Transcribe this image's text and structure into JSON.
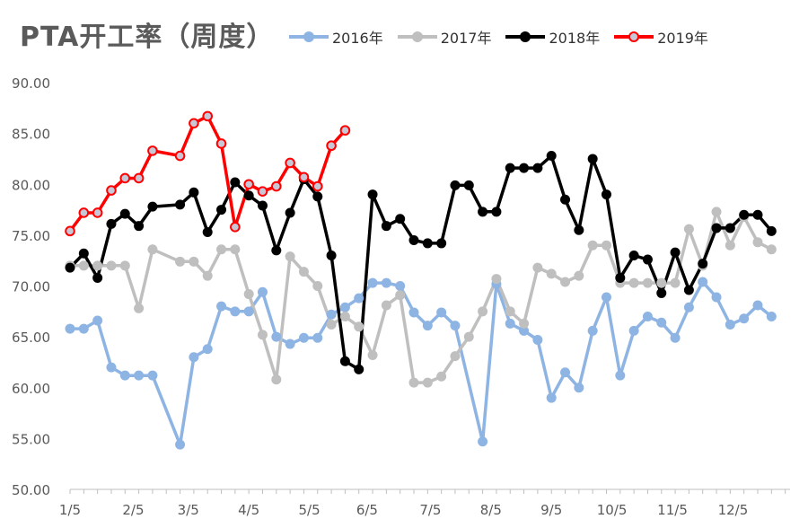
{
  "chart_data": {
    "type": "line",
    "title": "PTA开工率（周度）",
    "xlabel": "",
    "ylabel": "",
    "ylim": [
      50,
      90
    ],
    "yticks": [
      "50.00",
      "55.00",
      "60.00",
      "65.00",
      "70.00",
      "75.00",
      "80.00",
      "85.00",
      "90.00"
    ],
    "x_tick_labels": [
      "1/5",
      "2/5",
      "3/5",
      "4/5",
      "5/5",
      "6/5",
      "7/5",
      "8/5",
      "9/5",
      "10/5",
      "11/5",
      "12/5"
    ],
    "x_unit": "week of year (1 = first week of January)",
    "legend_position": "top",
    "grid": false,
    "series": [
      {
        "name": "2016年",
        "color": "#8eb4e3",
        "x": [
          1,
          2,
          3,
          4,
          5,
          6,
          7,
          9,
          10,
          11,
          12,
          13,
          14,
          15,
          16,
          17,
          18,
          19,
          20,
          21,
          22,
          23,
          24,
          25,
          26,
          27,
          28,
          29,
          31,
          32,
          33,
          34,
          35,
          36,
          37,
          38,
          39,
          40,
          41,
          42,
          43,
          44,
          45,
          46,
          47,
          48,
          49,
          50,
          51,
          52
        ],
        "values": [
          65.8,
          65.8,
          66.6,
          62.0,
          61.2,
          61.2,
          61.2,
          54.4,
          63.0,
          63.8,
          68.0,
          67.5,
          67.5,
          69.4,
          65.0,
          64.3,
          64.9,
          64.9,
          67.2,
          67.9,
          68.8,
          70.3,
          70.3,
          70.0,
          67.4,
          66.1,
          67.4,
          66.1,
          54.7,
          70.2,
          66.3,
          65.6,
          64.7,
          59.0,
          61.5,
          60.0,
          65.6,
          68.9,
          61.2,
          65.6,
          67.0,
          66.4,
          64.9,
          67.9,
          70.4,
          68.9,
          66.2,
          66.8,
          68.1,
          67.0
        ]
      },
      {
        "name": "2017年",
        "color": "#bfbfbf",
        "x": [
          1,
          2,
          3,
          4,
          5,
          6,
          7,
          9,
          10,
          11,
          12,
          13,
          14,
          15,
          16,
          17,
          18,
          19,
          20,
          21,
          22,
          23,
          24,
          25,
          26,
          27,
          28,
          29,
          30,
          31,
          32,
          33,
          34,
          35,
          36,
          37,
          38,
          39,
          40,
          41,
          42,
          43,
          44,
          45,
          46,
          47,
          48,
          49,
          50,
          51,
          52
        ],
        "values": [
          72.0,
          72.0,
          72.0,
          72.0,
          72.0,
          67.8,
          73.6,
          72.4,
          72.4,
          71.0,
          73.6,
          73.6,
          69.2,
          65.2,
          60.8,
          72.9,
          71.4,
          70.0,
          66.2,
          67.0,
          66.0,
          63.2,
          68.1,
          69.1,
          60.5,
          60.5,
          61.1,
          63.1,
          65.0,
          67.5,
          70.7,
          67.5,
          66.3,
          71.8,
          71.2,
          70.4,
          71.0,
          74.0,
          74.0,
          70.3,
          70.3,
          70.3,
          70.3,
          70.3,
          75.6,
          72.0,
          77.3,
          74.0,
          76.8,
          74.3,
          73.6
        ]
      },
      {
        "name": "2018年",
        "color": "#000000",
        "x": [
          1,
          2,
          3,
          4,
          5,
          6,
          7,
          9,
          10,
          11,
          12,
          13,
          14,
          15,
          16,
          17,
          18,
          19,
          20,
          21,
          22,
          23,
          24,
          25,
          26,
          27,
          28,
          29,
          30,
          31,
          32,
          33,
          34,
          35,
          36,
          37,
          38,
          39,
          40,
          41,
          42,
          43,
          44,
          45,
          46,
          47,
          48,
          49,
          50,
          51,
          52
        ],
        "values": [
          71.8,
          73.2,
          70.8,
          76.1,
          77.1,
          75.9,
          77.8,
          78.0,
          79.2,
          75.3,
          77.5,
          80.2,
          78.9,
          77.9,
          73.5,
          77.2,
          80.5,
          78.8,
          73.0,
          62.6,
          61.8,
          79.0,
          75.9,
          76.6,
          74.5,
          74.2,
          74.2,
          79.9,
          79.9,
          77.3,
          77.3,
          81.6,
          81.6,
          81.6,
          82.8,
          78.5,
          75.5,
          82.5,
          79.0,
          70.8,
          73.0,
          72.6,
          69.3,
          73.3,
          69.6,
          72.2,
          75.7,
          75.7,
          77.0,
          77.0,
          75.4
        ]
      },
      {
        "name": "2019年",
        "color": "#ff0000",
        "x": [
          1,
          2,
          3,
          4,
          5,
          6,
          7,
          9,
          10,
          11,
          12,
          13,
          14,
          15,
          16,
          17,
          18,
          19,
          20,
          21
        ],
        "values": [
          75.4,
          77.2,
          77.2,
          79.4,
          80.6,
          80.6,
          83.3,
          82.8,
          86.0,
          86.7,
          84.0,
          75.8,
          80.0,
          79.3,
          79.8,
          82.1,
          80.7,
          79.8,
          83.8,
          85.3
        ]
      }
    ]
  }
}
